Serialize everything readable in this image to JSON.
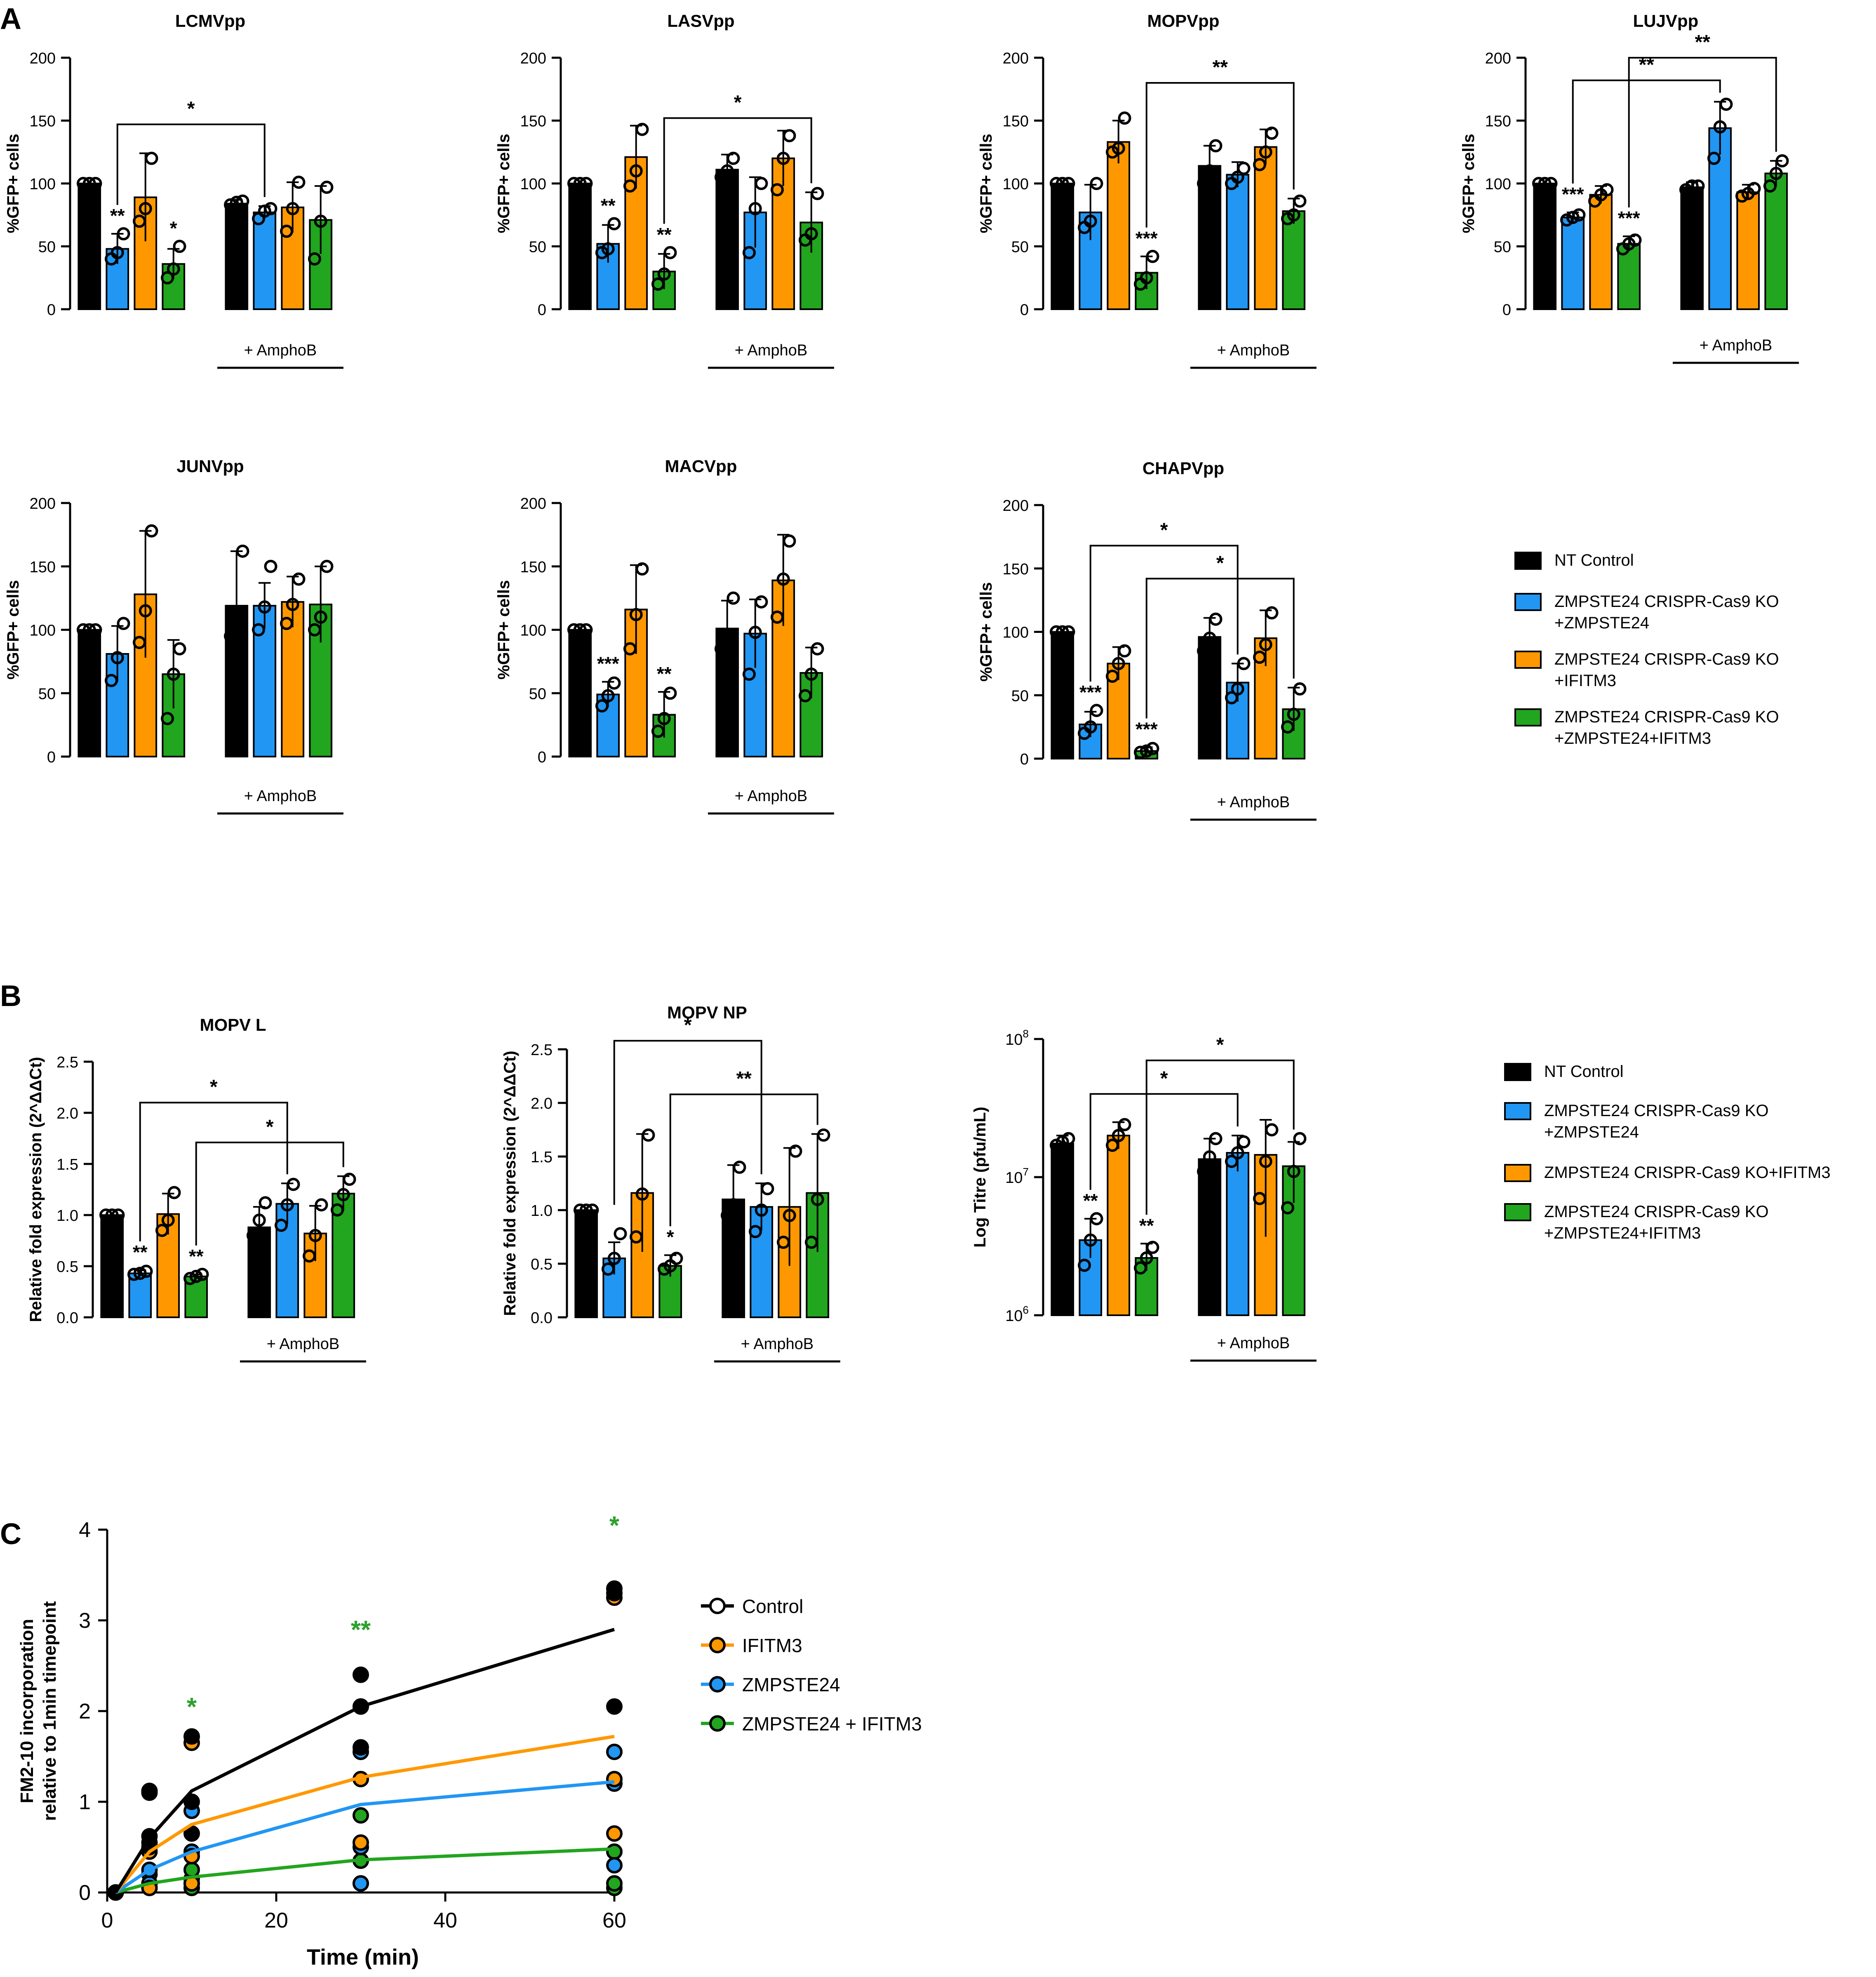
{
  "colors": {
    "control": "#000000",
    "zmpste24": "#2196f3",
    "ifitm3": "#ff9800",
    "both": "#22a51f",
    "star_green": "#2ca02c"
  },
  "panel_labels": [
    "A",
    "B",
    "C"
  ],
  "legend_A": {
    "items": [
      {
        "lines": [
          "NT Control"
        ],
        "color_key": "control"
      },
      {
        "lines": [
          "ZMPSTE24 CRISPR-Cas9 KO",
          "+ZMPSTE24"
        ],
        "color_key": "zmpste24"
      },
      {
        "lines": [
          "ZMPSTE24 CRISPR-Cas9 KO",
          "+IFITM3"
        ],
        "color_key": "ifitm3"
      },
      {
        "lines": [
          "ZMPSTE24 CRISPR-Cas9 KO",
          "+ZMPSTE24+IFITM3"
        ],
        "color_key": "both"
      }
    ]
  },
  "legend_B": {
    "items": [
      {
        "lines": [
          "NT Control"
        ],
        "color_key": "control"
      },
      {
        "lines": [
          "ZMPSTE24 CRISPR-Cas9 KO",
          "+ZMPSTE24"
        ],
        "color_key": "zmpste24"
      },
      {
        "lines": [
          "ZMPSTE24 CRISPR-Cas9 KO+IFITM3"
        ],
        "color_key": "ifitm3"
      },
      {
        "lines": [
          "ZMPSTE24 CRISPR-Cas9 KO",
          "+ZMPSTE24+IFITM3"
        ],
        "color_key": "both"
      }
    ]
  },
  "chart_data": [
    {
      "id": "LCMVpp",
      "panel": "A",
      "type": "bar",
      "title": "LCMVpp",
      "ylabel": "%GFP+ cells",
      "ylim": [
        0,
        200
      ],
      "yticks": [
        "0",
        "50",
        "100",
        "150",
        "200"
      ],
      "group_label": "+ AmphoB",
      "values": [
        100,
        48,
        89,
        36,
        84,
        77,
        81,
        71
      ],
      "errors": [
        0,
        12,
        35,
        12,
        3,
        5,
        20,
        27
      ],
      "points": [
        [
          100,
          100,
          100
        ],
        [
          40,
          45,
          60
        ],
        [
          70,
          80,
          120
        ],
        [
          25,
          32,
          50
        ],
        [
          83,
          85,
          86
        ],
        [
          72,
          78,
          80
        ],
        [
          62,
          80,
          101
        ],
        [
          40,
          70,
          97
        ]
      ],
      "stars": [
        "",
        "**",
        "",
        "*",
        "",
        "",
        "",
        ""
      ],
      "brackets": [
        {
          "from": 1,
          "to": 5,
          "y": 147,
          "label": "*"
        }
      ]
    },
    {
      "id": "LASVpp",
      "panel": "A",
      "type": "bar",
      "title": "LASVpp",
      "ylabel": "%GFP+ cells",
      "ylim": [
        0,
        200
      ],
      "yticks": [
        "0",
        "50",
        "100",
        "150",
        "200"
      ],
      "group_label": "+ AmphoB",
      "values": [
        100,
        52,
        121,
        30,
        111,
        77,
        120,
        69
      ],
      "errors": [
        0,
        15,
        25,
        14,
        12,
        28,
        22,
        24
      ],
      "points": [
        [
          100,
          100,
          100
        ],
        [
          45,
          48,
          68
        ],
        [
          98,
          110,
          143
        ],
        [
          20,
          28,
          45
        ],
        [
          105,
          110,
          120
        ],
        [
          45,
          80,
          100
        ],
        [
          95,
          120,
          138
        ],
        [
          55,
          60,
          92
        ]
      ],
      "stars": [
        "",
        "**",
        "",
        "**",
        "",
        "",
        "",
        ""
      ],
      "brackets": [
        {
          "from": 3,
          "to": 7,
          "y": 152,
          "label": "*"
        }
      ]
    },
    {
      "id": "MOPVpp",
      "panel": "A",
      "type": "bar",
      "title": "MOPVpp",
      "ylabel": "%GFP+ cells",
      "ylim": [
        0,
        200
      ],
      "yticks": [
        "0",
        "50",
        "100",
        "150",
        "200"
      ],
      "group_label": "+ AmphoB",
      "values": [
        100,
        77,
        133,
        29,
        114,
        107,
        129,
        78
      ],
      "errors": [
        0,
        22,
        17,
        13,
        16,
        10,
        14,
        10
      ],
      "points": [
        [
          100,
          100,
          100
        ],
        [
          65,
          70,
          100
        ],
        [
          125,
          128,
          152
        ],
        [
          20,
          25,
          42
        ],
        [
          100,
          110,
          130
        ],
        [
          100,
          105,
          112
        ],
        [
          115,
          125,
          140
        ],
        [
          72,
          75,
          86
        ]
      ],
      "stars": [
        "",
        "",
        "",
        "***",
        "",
        "",
        "",
        ""
      ],
      "brackets": [
        {
          "from": 3,
          "to": 7,
          "y": 180,
          "label": "**"
        }
      ]
    },
    {
      "id": "LUJVpp",
      "panel": "A",
      "type": "bar",
      "title": "LUJVpp",
      "ylabel": "%GFP+ cells",
      "ylim": [
        0,
        200
      ],
      "yticks": [
        "0",
        "50",
        "100",
        "150",
        "200"
      ],
      "group_label": "+ AmphoB",
      "values": [
        100,
        73,
        91,
        52,
        97,
        144,
        93,
        108
      ],
      "errors": [
        0,
        4,
        7,
        6,
        4,
        21,
        6,
        10
      ],
      "points": [
        [
          100,
          100,
          100
        ],
        [
          71,
          73,
          75
        ],
        [
          86,
          91,
          95
        ],
        [
          48,
          52,
          55
        ],
        [
          95,
          98,
          98
        ],
        [
          120,
          145,
          163
        ],
        [
          90,
          92,
          96
        ],
        [
          98,
          108,
          118
        ]
      ],
      "stars": [
        "",
        "***",
        "",
        "***",
        "",
        "",
        "",
        ""
      ],
      "brackets": [
        {
          "from": 1,
          "to": 5,
          "y": 182,
          "label": "**"
        },
        {
          "from": 3,
          "to": 7,
          "y": 200,
          "label": "**"
        }
      ]
    },
    {
      "id": "JUNVpp",
      "panel": "A",
      "type": "bar",
      "title": "JUNVpp",
      "ylabel": "%GFP+ cells",
      "ylim": [
        0,
        200
      ],
      "yticks": [
        "0",
        "50",
        "100",
        "150",
        "200"
      ],
      "group_label": "+ AmphoB",
      "values": [
        100,
        81,
        128,
        65,
        119,
        119,
        122,
        120
      ],
      "errors": [
        0,
        22,
        50,
        27,
        43,
        18,
        20,
        30
      ],
      "points": [
        [
          100,
          100,
          100
        ],
        [
          60,
          78,
          105
        ],
        [
          90,
          115,
          178
        ],
        [
          30,
          65,
          85
        ],
        [
          95,
          100,
          162
        ],
        [
          100,
          118,
          150
        ],
        [
          105,
          120,
          140
        ],
        [
          100,
          110,
          150
        ]
      ],
      "stars": [
        "",
        "",
        "",
        "",
        "",
        "",
        "",
        ""
      ],
      "brackets": []
    },
    {
      "id": "MACVpp",
      "panel": "A",
      "type": "bar",
      "title": "MACVpp",
      "ylabel": "%GFP+ cells",
      "ylim": [
        0,
        200
      ],
      "yticks": [
        "0",
        "50",
        "100",
        "150",
        "200"
      ],
      "group_label": "+ AmphoB",
      "values": [
        100,
        49,
        116,
        33,
        101,
        97,
        139,
        66
      ],
      "errors": [
        0,
        10,
        35,
        18,
        22,
        27,
        36,
        20
      ],
      "points": [
        [
          100,
          100,
          100
        ],
        [
          40,
          48,
          58
        ],
        [
          85,
          112,
          148
        ],
        [
          20,
          30,
          50
        ],
        [
          85,
          95,
          125
        ],
        [
          65,
          98,
          122
        ],
        [
          110,
          140,
          170
        ],
        [
          48,
          65,
          85
        ]
      ],
      "stars": [
        "",
        "***",
        "",
        "**",
        "",
        "",
        "",
        ""
      ],
      "brackets": []
    },
    {
      "id": "CHAPVpp",
      "panel": "A",
      "type": "bar",
      "title": "CHAPVpp",
      "ylabel": "%GFP+ cells",
      "ylim": [
        0,
        200
      ],
      "yticks": [
        "0",
        "50",
        "100",
        "150",
        "200"
      ],
      "group_label": "+ AmphoB",
      "values": [
        100,
        27,
        75,
        6,
        96,
        60,
        95,
        39
      ],
      "errors": [
        0,
        10,
        13,
        3,
        15,
        15,
        22,
        17
      ],
      "points": [
        [
          100,
          100,
          100
        ],
        [
          20,
          25,
          38
        ],
        [
          65,
          75,
          85
        ],
        [
          5,
          6,
          8
        ],
        [
          85,
          95,
          110
        ],
        [
          48,
          55,
          75
        ],
        [
          80,
          90,
          115
        ],
        [
          25,
          35,
          55
        ]
      ],
      "stars": [
        "",
        "***",
        "",
        "***",
        "",
        "",
        "",
        ""
      ],
      "brackets": [
        {
          "from": 1,
          "to": 5,
          "y": 168,
          "label": "*"
        },
        {
          "from": 3,
          "to": 7,
          "y": 142,
          "label": "*"
        }
      ]
    },
    {
      "id": "MOPV L",
      "panel": "B",
      "type": "bar",
      "title": "MOPV L",
      "ylabel": "Relative fold expression (2^ΔΔCt)",
      "ylim": [
        0,
        2.5
      ],
      "yticks": [
        "0.0",
        "0.5",
        "1.0",
        "1.5",
        "2.0",
        "2.5"
      ],
      "group_label": "+ AmphoB",
      "values": [
        1.0,
        0.43,
        1.01,
        0.4,
        0.88,
        1.11,
        0.82,
        1.21
      ],
      "errors": [
        0,
        0.03,
        0.2,
        0.02,
        0.2,
        0.2,
        0.27,
        0.17
      ],
      "points": [
        [
          1.0,
          1.0,
          1.0
        ],
        [
          0.42,
          0.43,
          0.45
        ],
        [
          0.85,
          0.95,
          1.22
        ],
        [
          0.38,
          0.4,
          0.42
        ],
        [
          0.8,
          0.95,
          1.12
        ],
        [
          0.9,
          1.1,
          1.3
        ],
        [
          0.6,
          0.8,
          1.1
        ],
        [
          1.05,
          1.2,
          1.35
        ]
      ],
      "stars": [
        "",
        "**",
        "",
        "**",
        "",
        "",
        "",
        ""
      ],
      "brackets": [
        {
          "from": 1,
          "to": 5,
          "y": 2.1,
          "label": "*"
        },
        {
          "from": 3,
          "to": 7,
          "y": 1.71,
          "label": "*"
        }
      ]
    },
    {
      "id": "MOPV NP",
      "panel": "B",
      "type": "bar",
      "title": "MOPV NP",
      "ylabel": "Relative fold expression (2^ΔΔCt)",
      "ylim": [
        0,
        2.5
      ],
      "yticks": [
        "0.0",
        "0.5",
        "1.0",
        "1.5",
        "2.0",
        "2.5"
      ],
      "group_label": "+ AmphoB",
      "values": [
        1.0,
        0.55,
        1.16,
        0.48,
        1.1,
        1.03,
        1.03,
        1.16
      ],
      "errors": [
        0,
        0.15,
        0.55,
        0.1,
        0.32,
        0.22,
        0.55,
        0.55
      ],
      "points": [
        [
          1.0,
          1.0,
          1.0
        ],
        [
          0.45,
          0.55,
          0.78
        ],
        [
          0.75,
          1.15,
          1.7
        ],
        [
          0.45,
          0.48,
          0.55
        ],
        [
          0.95,
          1.05,
          1.4
        ],
        [
          0.8,
          1.0,
          1.2
        ],
        [
          0.7,
          0.95,
          1.55
        ],
        [
          0.7,
          1.1,
          1.7
        ]
      ],
      "stars": [
        "",
        "",
        "",
        "*",
        "",
        "",
        "",
        ""
      ],
      "brackets": [
        {
          "from": 1,
          "to": 5,
          "y": 2.58,
          "label": "*"
        },
        {
          "from": 3,
          "to": 7,
          "y": 2.08,
          "label": "**"
        }
      ]
    },
    {
      "id": "Log Titre",
      "panel": "B",
      "type": "bar",
      "title": "",
      "ylabel": "Log Titre (pfu/mL)",
      "scale": "log",
      "ylim": [
        1000000,
        100000000
      ],
      "yticks_log": [
        {
          "base": "10",
          "exp": "6"
        },
        {
          "base": "10",
          "exp": "7"
        },
        {
          "base": "10",
          "exp": "8"
        }
      ],
      "group_label": "+ AmphoB",
      "values": [
        17500000,
        3500000,
        20000000,
        2600000,
        13500000,
        15000000,
        14500000,
        12000000
      ],
      "error_hi": [
        20000000,
        5000000,
        25000000,
        3300000,
        19000000,
        20000000,
        26000000,
        18000000
      ],
      "error_lo": [
        16000000,
        2600000,
        16000000,
        2100000,
        9500000,
        11000000,
        3700000,
        6500000
      ],
      "points": [
        [
          17000000,
          18000000,
          19000000
        ],
        [
          2300000,
          3500000,
          5000000
        ],
        [
          17000000,
          20000000,
          24000000
        ],
        [
          2200000,
          2600000,
          3100000
        ],
        [
          11000000,
          14000000,
          19000000
        ],
        [
          13000000,
          15000000,
          18000000
        ],
        [
          7000000,
          13000000,
          22000000
        ],
        [
          6000000,
          11000000,
          19000000
        ]
      ],
      "stars": [
        "",
        "**",
        "",
        "**",
        "",
        "",
        "",
        ""
      ],
      "brackets": [
        {
          "from": 1,
          "to": 5,
          "y": 40000000,
          "label": "*"
        },
        {
          "from": 3,
          "to": 7,
          "y": 70000000,
          "label": "*"
        }
      ]
    },
    {
      "id": "FM2-10",
      "panel": "C",
      "type": "line",
      "xlabel": "Time (min)",
      "ylabel_lines": [
        "FM2-10 incorporation",
        "relative to 1min timepoint"
      ],
      "xlim": [
        0,
        60
      ],
      "ylim": [
        0,
        4
      ],
      "xticks": [
        "0",
        "20",
        "40",
        "60"
      ],
      "yticks": [
        "0",
        "1",
        "2",
        "3",
        "4"
      ],
      "x": [
        1,
        5,
        10,
        30,
        60
      ],
      "series": [
        {
          "name": "Control",
          "color_key": "control",
          "values": [
            0,
            0.6,
            1.12,
            2.05,
            2.9
          ],
          "points": [
            [
              0,
              0,
              0
            ],
            [
              0.5,
              0.62,
              1.12
            ],
            [
              0.65,
              1.0,
              1.72
            ],
            [
              1.6,
              2.05,
              2.4
            ],
            [
              2.05,
              3.3,
              3.35
            ]
          ]
        },
        {
          "name": "IFITM3",
          "color_key": "ifitm3",
          "values": [
            0,
            0.45,
            0.75,
            1.27,
            1.72
          ],
          "points": [
            [
              0,
              0,
              0
            ],
            [
              0.05,
              0.45,
              1.1
            ],
            [
              0.1,
              0.4,
              1.65
            ],
            [
              0.55,
              1.25,
              2.05
            ],
            [
              0.65,
              1.25,
              3.25
            ]
          ]
        },
        {
          "name": "ZMPSTE24",
          "color_key": "zmpste24",
          "values": [
            0,
            0.25,
            0.45,
            0.97,
            1.22
          ],
          "points": [
            [
              0,
              0,
              0
            ],
            [
              0.1,
              0.25,
              0.55
            ],
            [
              0.1,
              0.45,
              0.9
            ],
            [
              0.1,
              0.5,
              1.55
            ],
            [
              0.3,
              1.2,
              1.55
            ]
          ]
        },
        {
          "name": "ZMPSTE24 + IFITM3",
          "color_key": "both",
          "values": [
            0,
            0.1,
            0.17,
            0.36,
            0.48
          ],
          "points": [
            [
              0,
              0,
              0
            ],
            [
              0.05,
              0.1,
              0.2
            ],
            [
              0.05,
              0.15,
              0.25
            ],
            [
              0.1,
              0.35,
              0.85
            ],
            [
              0.05,
              0.1,
              0.45
            ]
          ]
        }
      ],
      "sig_stars": [
        {
          "x": 10,
          "y": 1.95,
          "label": "*"
        },
        {
          "x": 30,
          "y": 2.8,
          "label": "**"
        },
        {
          "x": 60,
          "y": 3.95,
          "label": "*"
        }
      ]
    }
  ]
}
